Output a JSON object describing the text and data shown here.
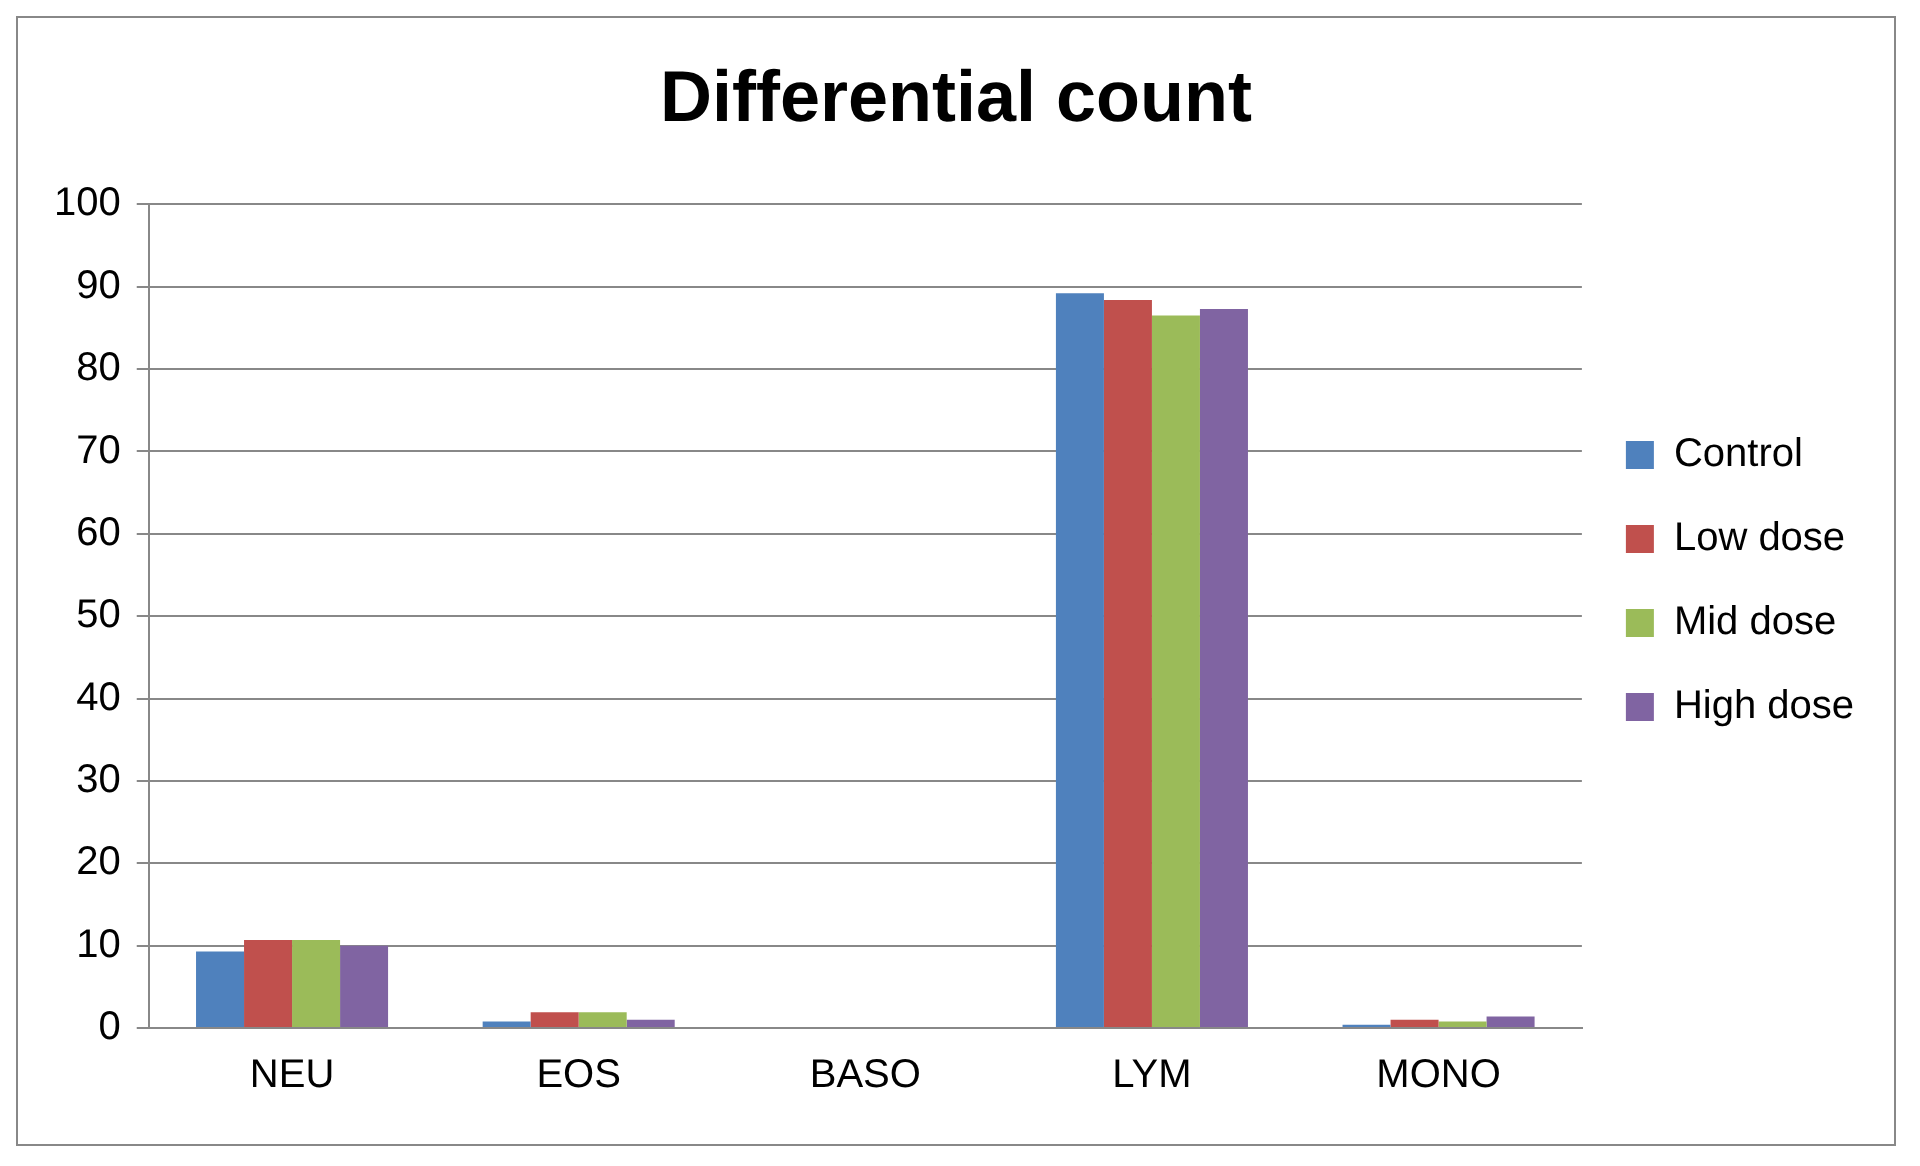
{
  "chart_data": {
    "type": "bar",
    "title": "Differential count",
    "categories": [
      "NEU",
      "EOS",
      "BASO",
      "LYM",
      "MONO"
    ],
    "series": [
      {
        "name": "Control",
        "color": "#4f81bd",
        "values": [
          9.3,
          0.8,
          0,
          89.2,
          0.4
        ]
      },
      {
        "name": "Low dose",
        "color": "#c0504d",
        "values": [
          10.7,
          1.9,
          0,
          88.4,
          1.0
        ]
      },
      {
        "name": "Mid dose",
        "color": "#9bbb59",
        "values": [
          10.7,
          1.9,
          0,
          86.5,
          0.8
        ]
      },
      {
        "name": "High dose",
        "color": "#8064a2",
        "values": [
          10.0,
          1.0,
          0,
          87.3,
          1.4
        ]
      }
    ],
    "ylim": [
      0,
      100
    ],
    "yticks": [
      0,
      10,
      20,
      30,
      40,
      50,
      60,
      70,
      80,
      90,
      100
    ],
    "grid": "y",
    "legend": "right"
  }
}
